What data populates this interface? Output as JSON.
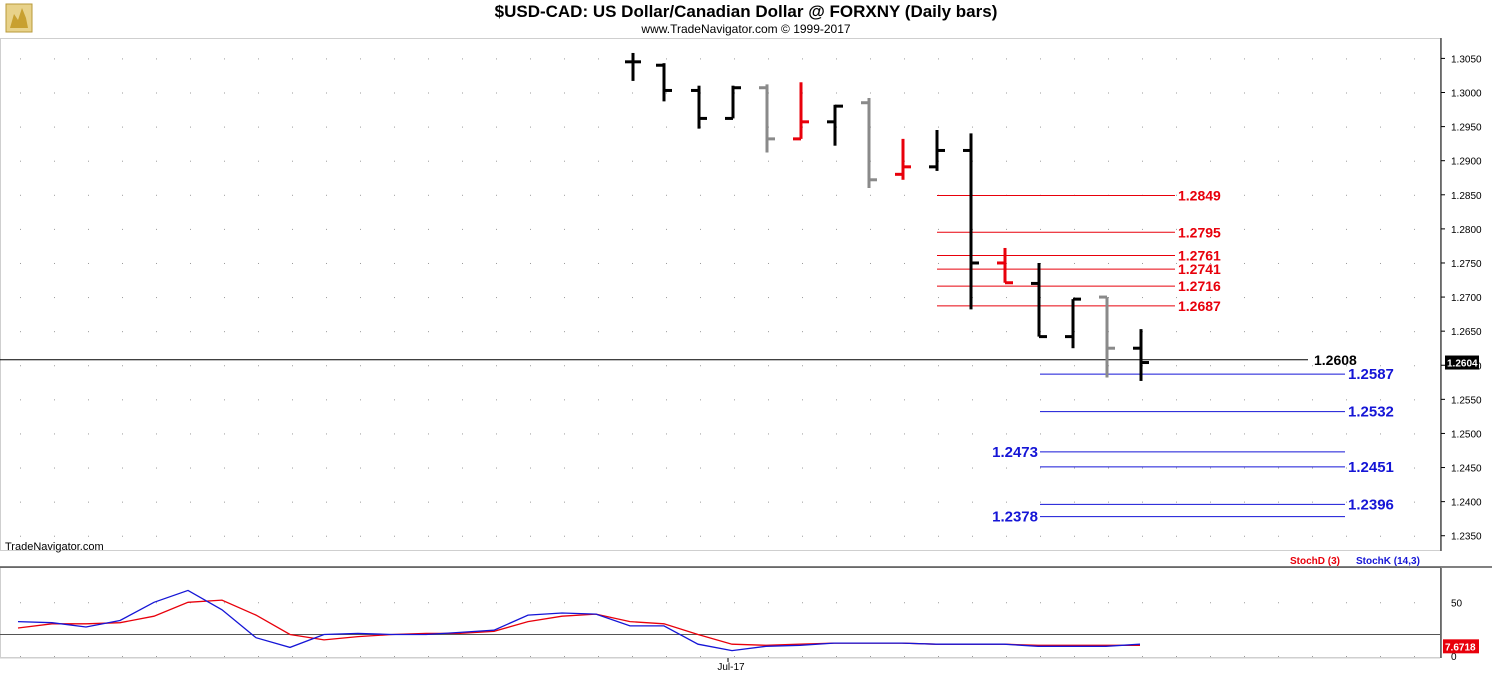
{
  "header": {
    "title": "$USD-CAD:  US Dollar/Canadian Dollar @ FORXNY  (Daily bars)",
    "subtitle": "www.TradeNavigator.com © 1999-2017",
    "logo_icon": "bull-logo-icon"
  },
  "watermark": "TradeNavigator.com",
  "colors": {
    "up": "#000000",
    "down_red": "#e8000b",
    "gray": "#8a8a8a",
    "blue_level": "#1515d6",
    "red_level": "#e8000b",
    "stoch_d": "#e8000b",
    "stoch_k": "#1515d6"
  },
  "price_axis": {
    "ticks": [
      "1.3050",
      "1.3000",
      "1.2950",
      "1.2900",
      "1.2850",
      "1.2800",
      "1.2750",
      "1.2700",
      "1.2650",
      "1.2600",
      "1.2550",
      "1.2500",
      "1.2450",
      "1.2400",
      "1.2350"
    ],
    "ylim": [
      1.2332,
      1.3077
    ],
    "current_price_badge": "1.2604"
  },
  "x_axis": {
    "date_label": "Jul-17"
  },
  "levels": {
    "current": {
      "value": 1.2608,
      "label": "1.2608"
    },
    "red": [
      {
        "value": 1.2849,
        "label": "1.2849"
      },
      {
        "value": 1.2795,
        "label": "1.2795"
      },
      {
        "value": 1.2761,
        "label": "1.2761"
      },
      {
        "value": 1.2741,
        "label": "1.2741"
      },
      {
        "value": 1.2716,
        "label": "1.2716"
      },
      {
        "value": 1.2687,
        "label": "1.2687"
      }
    ],
    "blue_right": [
      {
        "value": 1.2587,
        "label": "1.2587"
      },
      {
        "value": 1.2532,
        "label": "1.2532"
      },
      {
        "value": 1.2451,
        "label": "1.2451"
      },
      {
        "value": 1.2396,
        "label": "1.2396"
      }
    ],
    "blue_left": [
      {
        "value": 1.2473,
        "label": "1.2473"
      },
      {
        "value": 1.2378,
        "label": "1.2378"
      }
    ]
  },
  "chart_data": {
    "type": "ohlc",
    "title": "$USD-CAD:  US Dollar/Canadian Dollar @ FORXNY  (Daily bars)",
    "bars": [
      {
        "x": 633,
        "o": 1.3045,
        "h": 1.3058,
        "l": 1.3017,
        "c": 1.3045,
        "color": "black"
      },
      {
        "x": 664,
        "o": 1.304,
        "h": 1.3043,
        "l": 1.2987,
        "c": 1.3003,
        "color": "black"
      },
      {
        "x": 699,
        "o": 1.3003,
        "h": 1.301,
        "l": 1.2947,
        "c": 1.2962,
        "color": "black"
      },
      {
        "x": 733,
        "o": 1.2962,
        "h": 1.301,
        "l": 1.2962,
        "c": 1.3007,
        "color": "black"
      },
      {
        "x": 767,
        "o": 1.3007,
        "h": 1.3012,
        "l": 1.2912,
        "c": 1.2932,
        "color": "gray"
      },
      {
        "x": 801,
        "o": 1.2932,
        "h": 1.3015,
        "l": 1.2932,
        "c": 1.2957,
        "color": "red"
      },
      {
        "x": 835,
        "o": 1.2957,
        "h": 1.2982,
        "l": 1.2922,
        "c": 1.298,
        "color": "black"
      },
      {
        "x": 869,
        "o": 1.2985,
        "h": 1.2992,
        "l": 1.286,
        "c": 1.2872,
        "color": "gray"
      },
      {
        "x": 903,
        "o": 1.288,
        "h": 1.2932,
        "l": 1.2872,
        "c": 1.2891,
        "color": "red"
      },
      {
        "x": 937,
        "o": 1.2891,
        "h": 1.2945,
        "l": 1.2885,
        "c": 1.2915,
        "color": "black"
      },
      {
        "x": 971,
        "o": 1.2915,
        "h": 1.294,
        "l": 1.2682,
        "c": 1.275,
        "color": "black"
      },
      {
        "x": 1005,
        "o": 1.275,
        "h": 1.2772,
        "l": 1.2721,
        "c": 1.2721,
        "color": "red"
      },
      {
        "x": 1039,
        "o": 1.272,
        "h": 1.275,
        "l": 1.2642,
        "c": 1.2642,
        "color": "black"
      },
      {
        "x": 1073,
        "o": 1.2642,
        "h": 1.2697,
        "l": 1.2625,
        "c": 1.2697,
        "color": "black"
      },
      {
        "x": 1107,
        "o": 1.27,
        "h": 1.27,
        "l": 1.2582,
        "c": 1.2625,
        "color": "gray"
      },
      {
        "x": 1141,
        "o": 1.2625,
        "h": 1.2653,
        "l": 1.2577,
        "c": 1.2604,
        "color": "black"
      }
    ],
    "ylim": [
      1.2332,
      1.3077
    ]
  },
  "stochastic": {
    "legend_d": "StochD (3)",
    "legend_k": "StochK (14,3)",
    "ticks": [
      "50",
      "0"
    ],
    "value_badge": "7.6718",
    "ylim": [
      0,
      80
    ],
    "reference_level": 20,
    "k_values": [
      32,
      31,
      27,
      33,
      50,
      61,
      43,
      17,
      8,
      20,
      21,
      20,
      20,
      22,
      24,
      38,
      40,
      39,
      28,
      28,
      11,
      5,
      9,
      10,
      12,
      12,
      12,
      11,
      11,
      11,
      9,
      9,
      9,
      11
    ],
    "d_values": [
      26,
      30,
      30,
      31,
      37,
      50,
      52,
      38,
      20,
      15,
      18,
      20,
      21,
      21,
      23,
      32,
      37,
      39,
      32,
      30,
      20,
      11,
      10,
      11,
      12,
      12,
      12,
      11,
      11,
      11,
      10,
      10,
      10,
      10
    ]
  }
}
